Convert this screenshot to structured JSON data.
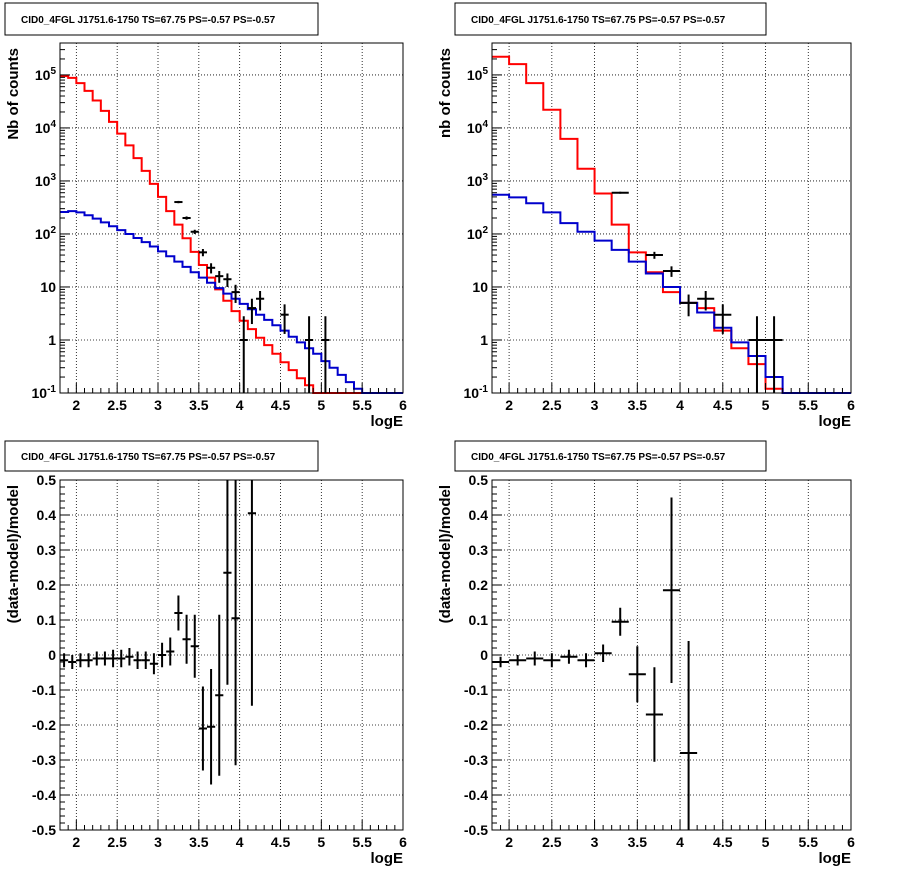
{
  "page_title": "CID0_4FGL J1751.6-1750 TS=67.75 PS=-0.57 PS=-0.57",
  "chart_data": [
    {
      "type": "step",
      "title": "CID0_4FGL J1751.6-1750 TS=67.75 PS=-0.57 PS=-0.57",
      "xlabel": "logE",
      "ylabel": "Nb of counts",
      "xlim": [
        1.8,
        6.0
      ],
      "ylim": [
        0.1,
        400000
      ],
      "log_y": true,
      "grid": true,
      "x_ticks": [
        "2",
        "2.5",
        "3",
        "3.5",
        "4",
        "4.5",
        "5",
        "5.5",
        "6"
      ],
      "y_ticks": [
        "10^-1",
        "1",
        "10",
        "10^2",
        "10^3",
        "10^4",
        "10^5"
      ],
      "series": [
        {
          "color": "#ff0000",
          "bin_edges": [
            1.8,
            1.9,
            2.0,
            2.1,
            2.2,
            2.3,
            2.4,
            2.5,
            2.6,
            2.7,
            2.8,
            2.9,
            3.0,
            3.1,
            3.2,
            3.3,
            3.4,
            3.5,
            3.6,
            3.7,
            3.8,
            3.9,
            4.0,
            4.1,
            4.2,
            4.3,
            4.4,
            4.5,
            4.6,
            4.7,
            4.8,
            4.9,
            5.0,
            5.1,
            5.2,
            5.3,
            5.4,
            5.5,
            5.6,
            5.7,
            5.8,
            5.9,
            6.0
          ],
          "values": [
            95000,
            88000,
            70000,
            50000,
            33000,
            21000,
            13000,
            7800,
            4700,
            2700,
            1550,
            880,
            500,
            270,
            150,
            83,
            46,
            26,
            15,
            9,
            5.5,
            3.5,
            2.3,
            1.6,
            1.1,
            0.8,
            0.55,
            0.38,
            0.27,
            0.19,
            0.14,
            0.1,
            0.07,
            0.05,
            0.05,
            0.05,
            0.05,
            0.05,
            0.05,
            0.05,
            0.05,
            0.05
          ]
        },
        {
          "color": "#0000cc",
          "bin_edges": [
            1.8,
            1.9,
            2.0,
            2.1,
            2.2,
            2.3,
            2.4,
            2.5,
            2.6,
            2.7,
            2.8,
            2.9,
            3.0,
            3.1,
            3.2,
            3.3,
            3.4,
            3.5,
            3.6,
            3.7,
            3.8,
            3.9,
            4.0,
            4.1,
            4.2,
            4.3,
            4.4,
            4.5,
            4.6,
            4.7,
            4.8,
            4.9,
            5.0,
            5.1,
            5.2,
            5.3,
            5.4,
            5.5,
            5.6,
            5.7,
            5.8,
            5.9,
            6.0
          ],
          "values": [
            260,
            270,
            255,
            225,
            195,
            165,
            140,
            118,
            100,
            84,
            70,
            58,
            47,
            38,
            30,
            24,
            19,
            15,
            12,
            9.5,
            7.5,
            6,
            4.8,
            3.8,
            3.0,
            2.4,
            1.9,
            1.5,
            1.15,
            0.9,
            0.7,
            0.55,
            0.4,
            0.3,
            0.22,
            0.16,
            0.12,
            0.1,
            0.1,
            0.1,
            0.1,
            0.1
          ]
        }
      ],
      "data_points": {
        "color": "#000000",
        "x": [
          3.25,
          3.35,
          3.45,
          3.55,
          3.65,
          3.75,
          3.85,
          3.95,
          4.05,
          4.15,
          4.25,
          4.55,
          4.85,
          5.05
        ],
        "y": [
          400,
          200,
          110,
          45,
          23,
          16,
          14,
          8,
          1,
          4,
          6,
          3,
          1,
          1
        ],
        "yerr_low": [
          20,
          14,
          10,
          7,
          5,
          4,
          4,
          3,
          1,
          2,
          2.4,
          1.7,
          1,
          1
        ],
        "yerr_high": [
          20,
          14,
          10,
          7,
          5,
          4,
          4,
          3,
          1.8,
          2,
          2.4,
          1.7,
          1.8,
          1.8
        ],
        "xerr": 0.05
      }
    },
    {
      "type": "step",
      "title": "CID0_4FGL J1751.6-1750 TS=67.75 PS=-0.57 PS=-0.57",
      "xlabel": "logE",
      "ylabel": "nb of counts",
      "xlim": [
        1.8,
        6.0
      ],
      "ylim": [
        0.1,
        400000
      ],
      "log_y": true,
      "grid": true,
      "x_ticks": [
        "2",
        "2.5",
        "3",
        "3.5",
        "4",
        "4.5",
        "5",
        "5.5",
        "6"
      ],
      "y_ticks": [
        "10^-1",
        "1",
        "10",
        "10^2",
        "10^3",
        "10^4",
        "10^5"
      ],
      "series": [
        {
          "color": "#ff0000",
          "bin_edges": [
            1.8,
            2.0,
            2.2,
            2.4,
            2.6,
            2.8,
            3.0,
            3.2,
            3.4,
            3.6,
            3.8,
            4.0,
            4.2,
            4.4,
            4.6,
            4.8,
            5.0,
            5.2,
            5.4,
            5.6,
            5.8,
            6.0
          ],
          "values": [
            220000,
            160000,
            70000,
            22000,
            6200,
            1700,
            580,
            150,
            45,
            19,
            8,
            5,
            4,
            1.5,
            0.7,
            0.35,
            0.12,
            0.05,
            0.05,
            0.05,
            0.05
          ]
        },
        {
          "color": "#0000cc",
          "bin_edges": [
            1.8,
            2.0,
            2.2,
            2.4,
            2.6,
            2.8,
            3.0,
            3.2,
            3.4,
            3.6,
            3.8,
            4.0,
            4.2,
            4.4,
            4.6,
            4.8,
            5.0,
            5.2,
            5.4,
            5.6,
            5.8,
            6.0
          ],
          "values": [
            550,
            490,
            380,
            255,
            160,
            110,
            75,
            50,
            30,
            18,
            10,
            5,
            3.3,
            1.7,
            0.9,
            0.5,
            0.2,
            0.1,
            0.1,
            0.1,
            0.1
          ]
        }
      ],
      "data_points": {
        "color": "#000000",
        "x": [
          3.3,
          3.7,
          3.9,
          4.1,
          4.3,
          4.5,
          4.9,
          5.1
        ],
        "y": [
          600,
          40,
          20,
          5,
          6,
          3,
          1,
          1
        ],
        "yerr_low": [
          25,
          6,
          4.5,
          2.2,
          2.4,
          1.7,
          1,
          1
        ],
        "yerr_high": [
          25,
          6,
          4.5,
          2.2,
          2.4,
          1.7,
          1.8,
          1.8
        ],
        "xerr": 0.1
      }
    },
    {
      "type": "scatter",
      "title": "CID0_4FGL J1751.6-1750 TS=67.75 PS=-0.57 PS=-0.57",
      "xlabel": "logE",
      "ylabel": "(data-model)/model",
      "xlim": [
        1.8,
        6.0
      ],
      "ylim": [
        -0.5,
        0.5
      ],
      "grid": true,
      "x_ticks": [
        "2",
        "2.5",
        "3",
        "3.5",
        "4",
        "4.5",
        "5",
        "5.5",
        "6"
      ],
      "y_ticks": [
        "-0.5",
        "-0.4",
        "-0.3",
        "-0.2",
        "-0.1",
        "0",
        "0.1",
        "0.2",
        "0.3",
        "0.4",
        "0.5"
      ],
      "data_points": {
        "color": "#000000",
        "x": [
          1.85,
          1.95,
          2.05,
          2.15,
          2.25,
          2.35,
          2.45,
          2.55,
          2.65,
          2.75,
          2.85,
          2.95,
          3.05,
          3.15,
          3.25,
          3.35,
          3.45,
          3.55,
          3.65,
          3.75,
          3.85,
          3.95,
          4.15
        ],
        "y": [
          -0.015,
          -0.02,
          -0.015,
          -0.015,
          -0.01,
          -0.01,
          -0.01,
          -0.01,
          -0.005,
          -0.015,
          -0.015,
          -0.025,
          0.0,
          0.01,
          0.12,
          0.045,
          0.025,
          -0.21,
          -0.205,
          -0.115,
          0.235,
          0.105,
          0.405
        ],
        "yerr": [
          0.02,
          0.02,
          0.02,
          0.02,
          0.02,
          0.02,
          0.025,
          0.025,
          0.025,
          0.025,
          0.025,
          0.03,
          0.035,
          0.04,
          0.05,
          0.07,
          0.09,
          0.12,
          0.165,
          0.23,
          0.32,
          0.42,
          0.55
        ],
        "xerr": 0.05
      }
    },
    {
      "type": "scatter",
      "title": "CID0_4FGL J1751.6-1750 TS=67.75 PS=-0.57 PS=-0.57",
      "xlabel": "logE",
      "ylabel": "(data-model)/model",
      "xlim": [
        1.8,
        6.0
      ],
      "ylim": [
        -0.5,
        0.5
      ],
      "grid": true,
      "x_ticks": [
        "2",
        "2.5",
        "3",
        "3.5",
        "4",
        "4.5",
        "5",
        "5.5",
        "6"
      ],
      "y_ticks": [
        "-0.5",
        "-0.4",
        "-0.3",
        "-0.2",
        "-0.1",
        "0",
        "0.1",
        "0.2",
        "0.3",
        "0.4",
        "0.5"
      ],
      "data_points": {
        "color": "#000000",
        "x": [
          1.9,
          2.1,
          2.3,
          2.5,
          2.7,
          2.9,
          3.1,
          3.3,
          3.5,
          3.7,
          3.9,
          4.1
        ],
        "y": [
          -0.02,
          -0.015,
          -0.01,
          -0.015,
          -0.005,
          -0.015,
          0.005,
          0.095,
          -0.055,
          -0.17,
          0.185,
          -0.28
        ],
        "yerr": [
          0.015,
          0.015,
          0.02,
          0.02,
          0.02,
          0.02,
          0.025,
          0.04,
          0.08,
          0.135,
          0.265,
          0.32
        ],
        "xerr": 0.1
      }
    }
  ]
}
